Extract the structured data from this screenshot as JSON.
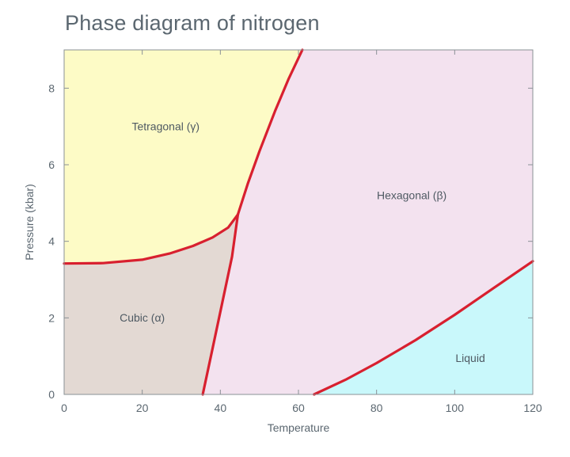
{
  "chart_data": {
    "type": "area",
    "title": "Phase diagram of nitrogen",
    "xlabel": "Temperature",
    "ylabel": "Pressure (kbar)",
    "xlim": [
      0,
      120
    ],
    "ylim": [
      0,
      9
    ],
    "xticks": [
      0,
      20,
      40,
      60,
      80,
      100,
      120
    ],
    "yticks": [
      0,
      2,
      4,
      6,
      8
    ],
    "grid": false,
    "regions": [
      {
        "name": "Tetragonal (γ)",
        "color": "#fdfbc6",
        "label_at": [
          26,
          6.9
        ]
      },
      {
        "name": "Hexagonal (β)",
        "color": "#f3e2ef",
        "label_at": [
          89,
          5.1
        ]
      },
      {
        "name": "Cubic (α)",
        "color": "#e3d9d3",
        "label_at": [
          20,
          1.9
        ]
      },
      {
        "name": "Liquid",
        "color": "#c9f8fb",
        "label_at": [
          104,
          0.85
        ]
      }
    ],
    "boundaries": [
      {
        "name": "tetragonal-cubic",
        "points": [
          [
            0,
            3.42
          ],
          [
            10,
            3.43
          ],
          [
            20,
            3.52
          ],
          [
            27,
            3.68
          ],
          [
            33,
            3.88
          ],
          [
            38,
            4.1
          ],
          [
            42,
            4.36
          ],
          [
            44.5,
            4.7
          ]
        ]
      },
      {
        "name": "tetragonal-hexagonal",
        "points": [
          [
            44.5,
            4.7
          ],
          [
            47,
            5.5
          ],
          [
            50,
            6.35
          ],
          [
            54,
            7.4
          ],
          [
            57.5,
            8.25
          ],
          [
            61,
            9.0
          ]
        ]
      },
      {
        "name": "cubic-hexagonal",
        "points": [
          [
            35.5,
            0
          ],
          [
            38,
            1.2
          ],
          [
            40.5,
            2.4
          ],
          [
            43,
            3.6
          ],
          [
            44.5,
            4.7
          ]
        ]
      },
      {
        "name": "hexagonal-liquid",
        "points": [
          [
            64,
            0
          ],
          [
            72,
            0.38
          ],
          [
            80,
            0.82
          ],
          [
            90,
            1.42
          ],
          [
            100,
            2.08
          ],
          [
            110,
            2.78
          ],
          [
            120,
            3.48
          ]
        ]
      }
    ],
    "colors": {
      "boundary": "#d8202f",
      "axis": "#8a9196",
      "text": "#5b6770"
    }
  }
}
